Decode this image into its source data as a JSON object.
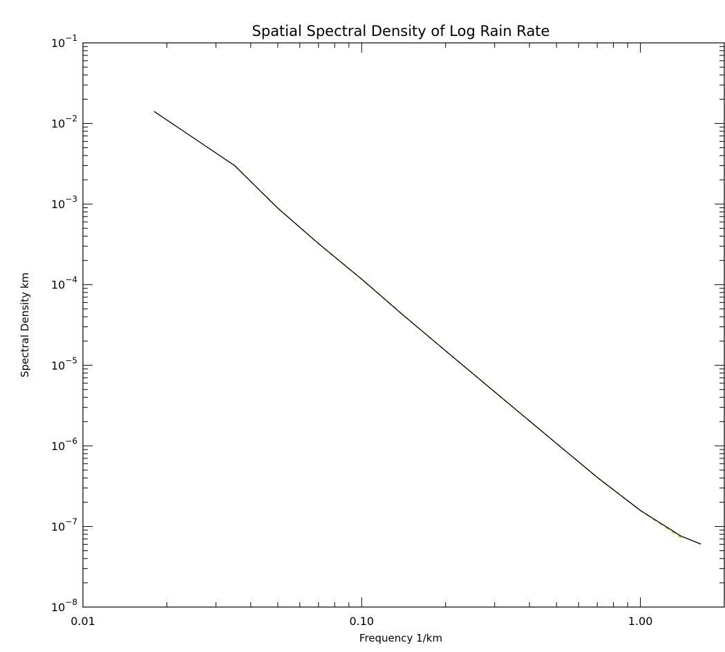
{
  "chart_data": {
    "type": "line",
    "title": "Spatial Spectral Density of Log Rain Rate",
    "xlabel": "Frequency 1/km",
    "ylabel": "Spectral Density km",
    "x_scale": "log",
    "y_scale": "log",
    "xlim": [
      0.01,
      2.0
    ],
    "ylim": [
      1e-08,
      0.1
    ],
    "x_ticks": [
      {
        "value": 0.01,
        "label": "0.01"
      },
      {
        "value": 0.1,
        "label": "0.10"
      },
      {
        "value": 1.0,
        "label": "1.00"
      }
    ],
    "y_ticks": [
      {
        "value": 0.1,
        "base": "10",
        "exp": "-1"
      },
      {
        "value": 0.01,
        "base": "10",
        "exp": "-2"
      },
      {
        "value": 0.001,
        "base": "10",
        "exp": "-3"
      },
      {
        "value": 0.0001,
        "base": "10",
        "exp": "-4"
      },
      {
        "value": 1e-05,
        "base": "10",
        "exp": "-5"
      },
      {
        "value": 1e-06,
        "base": "10",
        "exp": "-6"
      },
      {
        "value": 1e-07,
        "base": "10",
        "exp": "-7"
      },
      {
        "value": 1e-08,
        "base": "10",
        "exp": "-8"
      }
    ],
    "grid": false,
    "series": [
      {
        "color": "#000000",
        "style": "solid",
        "x": [
          0.018,
          0.035,
          0.05,
          0.07,
          0.1,
          0.14,
          0.2,
          0.3,
          0.5,
          0.7,
          1.0,
          1.4,
          1.65
        ],
        "y": [
          0.0141,
          0.00301,
          0.000891,
          0.000324,
          0.000117,
          4.27e-05,
          1.51e-05,
          4.68e-06,
          1.07e-06,
          4.07e-07,
          1.58e-07,
          7.59e-08,
          6.03e-08
        ]
      },
      {
        "color": "#b5c800",
        "style": "dashed",
        "x": [
          0.035,
          0.05,
          0.07,
          0.1,
          0.14,
          0.2,
          0.3,
          0.5,
          0.7,
          1.0,
          1.4
        ],
        "y": [
          0.00301,
          0.000891,
          0.000324,
          0.000117,
          4.27e-05,
          1.51e-05,
          4.68e-06,
          1.07e-06,
          4.07e-07,
          1.58e-07,
          7.24e-08
        ]
      }
    ]
  }
}
